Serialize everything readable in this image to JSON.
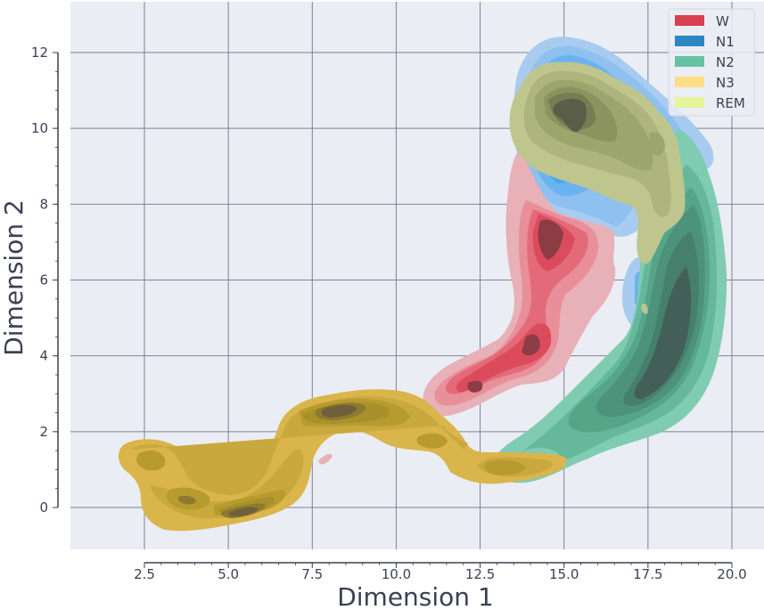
{
  "chart_data": {
    "type": "kde-contour",
    "title": "",
    "xlabel": "Dimension 1",
    "ylabel": "Dimension 2",
    "xlim": [
      0.3,
      21.0
    ],
    "ylim": [
      -1.1,
      13.3
    ],
    "x_ticks": [
      2.5,
      5.0,
      7.5,
      10.0,
      12.5,
      15.0,
      17.5,
      20.0
    ],
    "x_tick_labels": [
      "2.5",
      "5.0",
      "7.5",
      "10.0",
      "12.5",
      "15.0",
      "17.5",
      "20.0"
    ],
    "y_ticks": [
      0,
      2,
      4,
      6,
      8,
      10,
      12
    ],
    "y_tick_labels": [
      "0",
      "2",
      "4",
      "6",
      "8",
      "10",
      "12"
    ],
    "grid": true,
    "background": "#eaedf3",
    "legend_position": "upper right",
    "legend": [
      {
        "label": "W",
        "color": "#d93f50"
      },
      {
        "label": "N1",
        "color": "#2e86c1"
      },
      {
        "label": "N2",
        "color": "#66c2a5"
      },
      {
        "label": "N3",
        "color": "#fedd87"
      },
      {
        "label": "REM",
        "color": "#e6f59a"
      }
    ],
    "series": [
      {
        "name": "N1",
        "fill_levels": [
          "#a8cbf0",
          "#8ec0f0",
          "#6bb3f0",
          "#4aa8ee",
          "#3a8fc8",
          "#2f78a8"
        ],
        "peaks": [
          {
            "x": 15.0,
            "y": 11.0
          },
          {
            "x": 16.8,
            "y": 5.5
          }
        ],
        "extent": {
          "x": [
            13.8,
            19.0
          ],
          "y": [
            4.6,
            12.4
          ]
        }
      },
      {
        "name": "W",
        "fill_levels": [
          "#e8b0b7",
          "#e88f9a",
          "#e36b79",
          "#dc4b5c",
          "#c03e4e",
          "#8b3c45"
        ],
        "peaks": [
          {
            "x": 14.3,
            "y": 7.2
          },
          {
            "x": 14.0,
            "y": 4.3
          },
          {
            "x": 12.5,
            "y": 3.2
          }
        ],
        "extent": {
          "x": [
            11.7,
            16.2
          ],
          "y": [
            2.3,
            9.4
          ]
        }
      },
      {
        "name": "N2",
        "fill_levels": [
          "#80ccb2",
          "#66b89c",
          "#56a589",
          "#4d927a",
          "#46806d",
          "#425f58"
        ],
        "peaks": [
          {
            "x": 18.2,
            "y": 4.0
          },
          {
            "x": 17.2,
            "y": 8.0
          },
          {
            "x": 15.2,
            "y": 2.5
          }
        ],
        "extent": {
          "x": [
            12.5,
            19.8
          ],
          "y": [
            0.6,
            10.0
          ]
        }
      },
      {
        "name": "N3",
        "fill_levels": [
          "#d9b54c",
          "#c9a83d",
          "#b89b2e",
          "#a8902a",
          "#8d7a30",
          "#6f5f3a"
        ],
        "peaks": [
          {
            "x": 5.5,
            "y": -0.2
          },
          {
            "x": 8.5,
            "y": 2.6
          },
          {
            "x": 3.8,
            "y": 0.2
          },
          {
            "x": 2.8,
            "y": 1.2
          },
          {
            "x": 12.8,
            "y": 1.0
          },
          {
            "x": 11.0,
            "y": 1.9
          }
        ],
        "extent": {
          "x": [
            1.9,
            14.0
          ],
          "y": [
            -0.7,
            3.2
          ]
        }
      },
      {
        "name": "REM",
        "fill_levels": [
          "#bec68e",
          "#adb47c",
          "#9ca56c",
          "#8b935f",
          "#757e52",
          "#5a5e48"
        ],
        "peaks": [
          {
            "x": 15.0,
            "y": 10.4
          },
          {
            "x": 17.2,
            "y": 9.8
          }
        ],
        "extent": {
          "x": [
            13.6,
            18.5
          ],
          "y": [
            6.6,
            11.9
          ]
        }
      }
    ]
  }
}
